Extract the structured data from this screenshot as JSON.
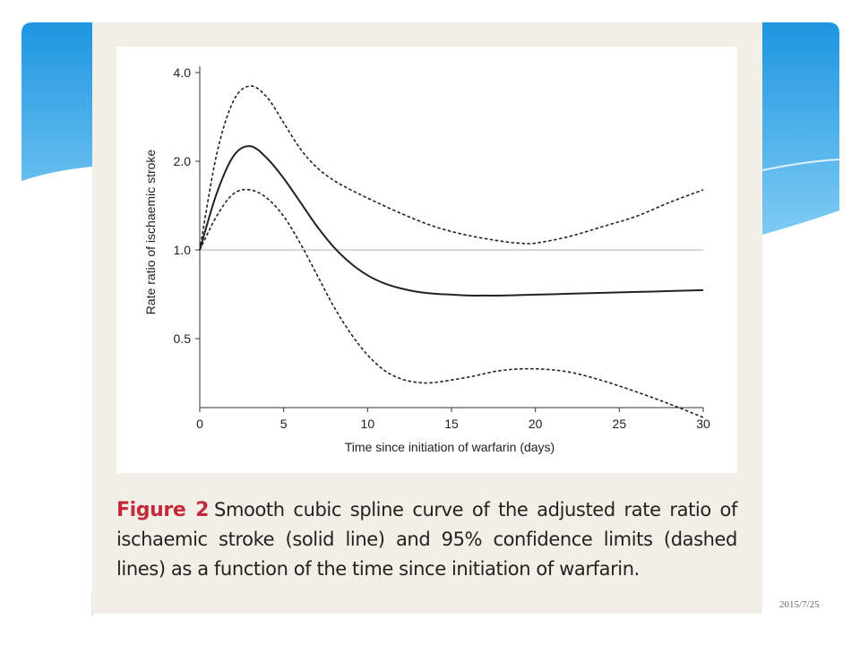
{
  "slide": {
    "date": "2015/7/25",
    "colors": {
      "banner_blue": "#1e96e0",
      "panel_bg": "#f2f0e6",
      "caption_accent": "#c42a3c"
    }
  },
  "caption": {
    "label": "Figure 2",
    "text": "Smooth cubic spline curve of the adjusted rate ratio of ischaemic stroke (solid line) and 95% confidence limits (dashed lines) as a function of the time since initiation of warfarin."
  },
  "chart_data": {
    "type": "line",
    "title": "",
    "xlabel": "Time since initiation of warfarin (days)",
    "ylabel": "Rate ratio of ischaemic stroke",
    "xlim": [
      0,
      30
    ],
    "ylim": [
      0.3,
      4.0
    ],
    "y_scale": "log",
    "x_ticks": [
      0,
      5,
      10,
      15,
      20,
      25,
      30
    ],
    "y_ticks": [
      0.5,
      1.0,
      2.0,
      4.0
    ],
    "y_tick_labels": [
      "0.5",
      "1.0",
      "2.0",
      "4.0"
    ],
    "reference_line": {
      "y": 1.0
    },
    "grid": false,
    "series": [
      {
        "style": "solid",
        "x": [
          0,
          1,
          2,
          3,
          4,
          5,
          6,
          7,
          8,
          9,
          10,
          11,
          12,
          13,
          14,
          15,
          16,
          17,
          18,
          20,
          22,
          24,
          26,
          28,
          30
        ],
        "y": [
          1.0,
          1.55,
          2.08,
          2.25,
          2.05,
          1.75,
          1.45,
          1.2,
          1.02,
          0.9,
          0.82,
          0.77,
          0.74,
          0.72,
          0.71,
          0.705,
          0.7,
          0.7,
          0.7,
          0.705,
          0.71,
          0.715,
          0.72,
          0.725,
          0.73
        ]
      },
      {
        "style": "dashed",
        "x": [
          0,
          1,
          2,
          3,
          4,
          5,
          6,
          7,
          8,
          9,
          10,
          12,
          14,
          16,
          18,
          19,
          20,
          22,
          24,
          26,
          28,
          30
        ],
        "y": [
          1.0,
          2.1,
          3.2,
          3.6,
          3.3,
          2.7,
          2.2,
          1.9,
          1.72,
          1.6,
          1.5,
          1.33,
          1.2,
          1.12,
          1.07,
          1.055,
          1.055,
          1.11,
          1.2,
          1.3,
          1.45,
          1.6
        ]
      },
      {
        "style": "dashed",
        "x": [
          0,
          1,
          2,
          3,
          4,
          5,
          6,
          7,
          8,
          9,
          10,
          11,
          12,
          13,
          14,
          16,
          18,
          20,
          22,
          24,
          26,
          28,
          30
        ],
        "y": [
          1.0,
          1.3,
          1.55,
          1.6,
          1.5,
          1.3,
          1.05,
          0.82,
          0.64,
          0.52,
          0.44,
          0.39,
          0.365,
          0.355,
          0.355,
          0.37,
          0.39,
          0.395,
          0.385,
          0.36,
          0.33,
          0.3,
          0.27
        ]
      }
    ]
  }
}
